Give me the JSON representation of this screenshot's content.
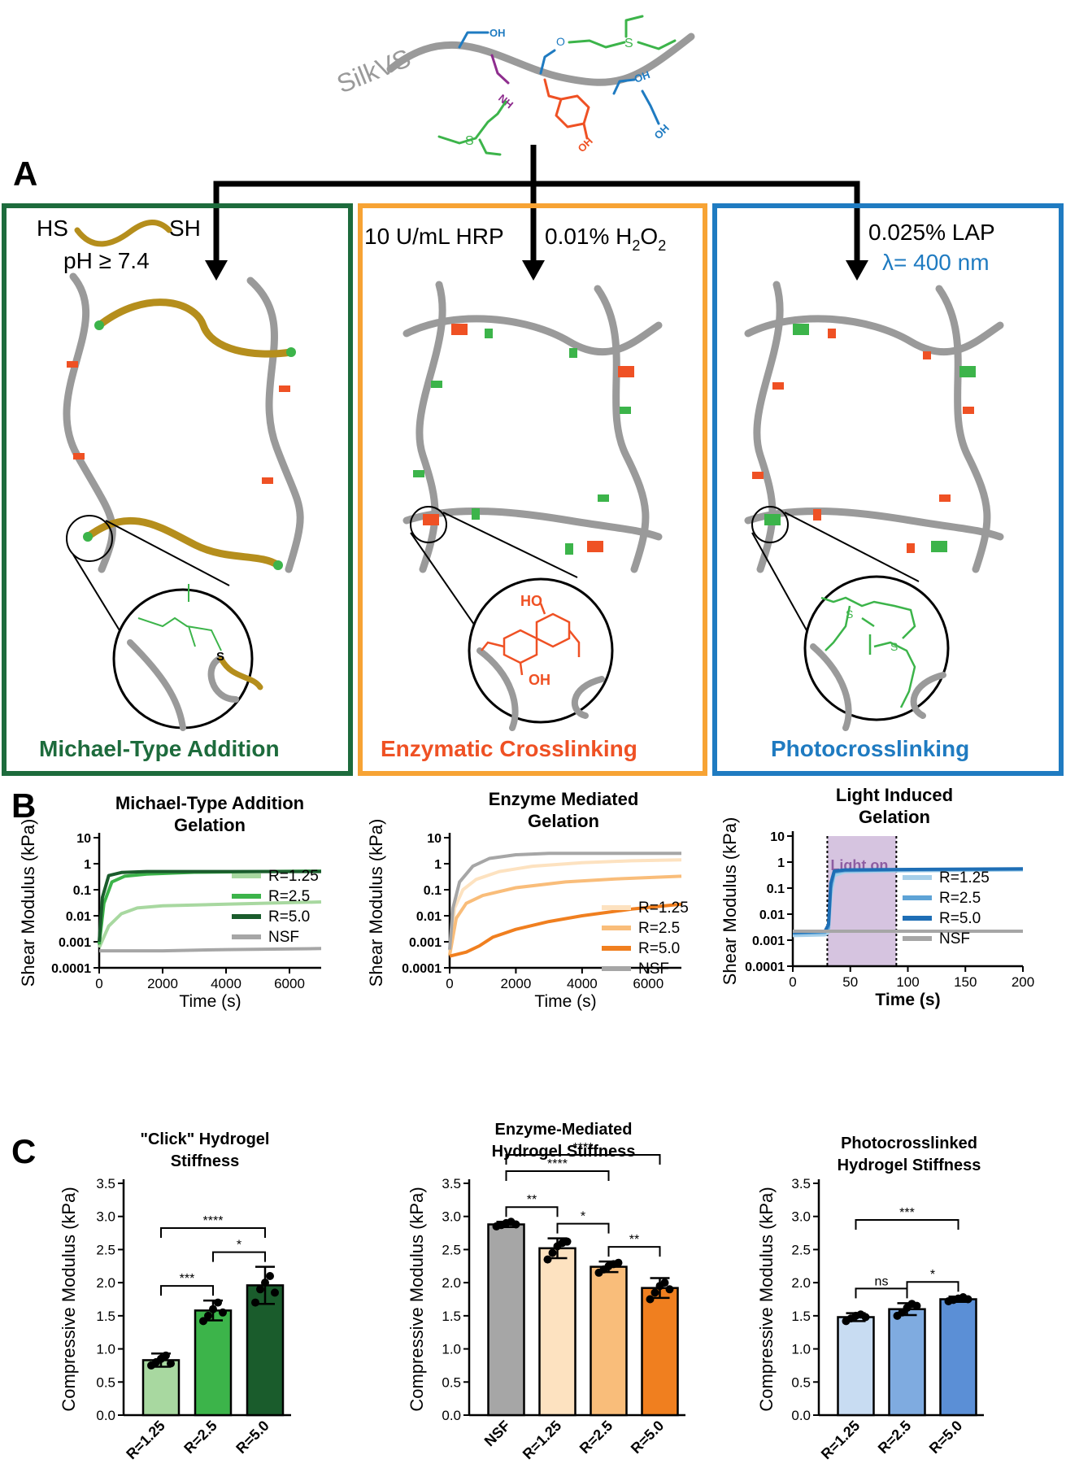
{
  "colors": {
    "green_frame": "#1d6b3c",
    "orange_frame": "#f7a334",
    "blue_frame": "#1f7bc1",
    "silk": "#9a9a9a",
    "vs_green": "#3cb44a",
    "tyr_red": "#ef5124",
    "oh_blue": "#1f7bc1",
    "nh_purple": "#8e2d8e",
    "crosslinker": "#b58e1c",
    "light_on": "#d6c4e0"
  },
  "panel_a": {
    "label": "A",
    "silk_label": "SilkVS",
    "oh": "OH",
    "nh": "NH",
    "o": "O",
    "s": "S",
    "michael": {
      "reagent_left": "HS",
      "reagent_right": "SH",
      "condition": "pH ≥ 7.4",
      "title": "Michael-Type Addition",
      "zoom_s": "S"
    },
    "enzymatic": {
      "reagent_hrp": "10 U/mL HRP",
      "reagent_h2o2": "0.01% H",
      "h2o2_sub1": "2",
      "h2o2_mid": "O",
      "h2o2_sub2": "2",
      "title": "Enzymatic Crosslinking",
      "zoom_ho": "HO",
      "zoom_oh": "OH"
    },
    "photo": {
      "reagent_lap": "0.025% LAP",
      "wavelength": "λ= 400 nm",
      "title": "Photocrosslinking"
    }
  },
  "panel_b": {
    "label": "B",
    "ylabel": "Shear Modulus (kPa)",
    "charts": [
      {
        "title1": "Michael-Type Addition",
        "title2": "Gelation",
        "xlabel": "Time (s)"
      },
      {
        "title1": "Enzyme Mediated",
        "title2": "Gelation",
        "xlabel": "Time (s)"
      },
      {
        "title1": "Light Induced",
        "title2": "Gelation",
        "xlabel": "Time (s)",
        "light_label": "Light on"
      }
    ]
  },
  "panel_c": {
    "label": "C",
    "ylabel": "Compressive Modulus (kPa)",
    "charts": [
      {
        "title1": "\"Click\" Hydrogel",
        "title2": "Stiffness"
      },
      {
        "title1": "Enzyme-Mediated",
        "title2": "Hydrogel Stiffness"
      },
      {
        "title1": "Photocrosslinked",
        "title2": "Hydrogel Stiffness"
      }
    ]
  },
  "chart_data": [
    {
      "id": "B1",
      "type": "line",
      "title": "Michael-Type Addition Gelation",
      "xlabel": "Time (s)",
      "ylabel": "Shear Modulus (kPa)",
      "xlim": [
        0,
        7000
      ],
      "ylim": [
        0.0001,
        10
      ],
      "yscale": "log",
      "xticks": [
        "0",
        "2000",
        "4000",
        "6000"
      ],
      "yticks": [
        "10",
        "1",
        "0.1",
        "0.01",
        "0.001",
        "0.0001"
      ],
      "series": [
        {
          "name": "R=1.25",
          "color": "#a8d8a0",
          "points": [
            [
              0,
              0.0006
            ],
            [
              300,
              0.004
            ],
            [
              700,
              0.012
            ],
            [
              1200,
              0.02
            ],
            [
              2000,
              0.024
            ],
            [
              4000,
              0.028
            ],
            [
              7000,
              0.034
            ]
          ]
        },
        {
          "name": "R=2.5",
          "color": "#3cb44a",
          "points": [
            [
              0,
              0.0008
            ],
            [
              150,
              0.03
            ],
            [
              400,
              0.2
            ],
            [
              800,
              0.33
            ],
            [
              1500,
              0.4
            ],
            [
              3000,
              0.47
            ],
            [
              5000,
              0.5
            ],
            [
              7000,
              0.52
            ]
          ]
        },
        {
          "name": "R=5.0",
          "color": "#1a5c2c",
          "points": [
            [
              0,
              0.001
            ],
            [
              100,
              0.05
            ],
            [
              300,
              0.35
            ],
            [
              700,
              0.46
            ],
            [
              1500,
              0.5
            ],
            [
              3000,
              0.5
            ],
            [
              7000,
              0.5
            ]
          ]
        },
        {
          "name": "NSF",
          "color": "#a6a6a6",
          "points": [
            [
              0,
              0.00045
            ],
            [
              2000,
              0.00045
            ],
            [
              4000,
              0.0005
            ],
            [
              7000,
              0.00055
            ]
          ]
        }
      ]
    },
    {
      "id": "B2",
      "type": "line",
      "title": "Enzyme Mediated Gelation",
      "xlabel": "Time (s)",
      "ylabel": "Shear Modulus (kPa)",
      "xlim": [
        0,
        7000
      ],
      "ylim": [
        0.0001,
        10
      ],
      "yscale": "log",
      "xticks": [
        "0",
        "2000",
        "4000",
        "6000"
      ],
      "yticks": [
        "10",
        "1",
        "0.1",
        "0.01",
        "0.001",
        "0.0001"
      ],
      "series": [
        {
          "name": "R=1.25",
          "color": "#fde2c0",
          "points": [
            [
              0,
              0.0003
            ],
            [
              150,
              0.02
            ],
            [
              400,
              0.1
            ],
            [
              800,
              0.25
            ],
            [
              1500,
              0.5
            ],
            [
              2500,
              0.8
            ],
            [
              4000,
              1.1
            ],
            [
              5500,
              1.3
            ],
            [
              7000,
              1.4
            ]
          ]
        },
        {
          "name": "R=2.5",
          "color": "#f9bd7a",
          "points": [
            [
              0,
              0.0003
            ],
            [
              200,
              0.008
            ],
            [
              500,
              0.03
            ],
            [
              1000,
              0.06
            ],
            [
              2000,
              0.12
            ],
            [
              3500,
              0.2
            ],
            [
              5000,
              0.26
            ],
            [
              7000,
              0.33
            ]
          ]
        },
        {
          "name": "R=5.0",
          "color": "#f07f1f",
          "points": [
            [
              0,
              0.00028
            ],
            [
              500,
              0.0004
            ],
            [
              900,
              0.0007
            ],
            [
              1300,
              0.0015
            ],
            [
              2000,
              0.003
            ],
            [
              3000,
              0.006
            ],
            [
              4000,
              0.01
            ],
            [
              5500,
              0.018
            ],
            [
              7000,
              0.028
            ]
          ]
        },
        {
          "name": "NSF",
          "color": "#a6a6a6",
          "points": [
            [
              0,
              0.0005
            ],
            [
              100,
              0.02
            ],
            [
              300,
              0.2
            ],
            [
              700,
              0.8
            ],
            [
              1200,
              1.6
            ],
            [
              2000,
              2.2
            ],
            [
              3000,
              2.5
            ],
            [
              7000,
              2.5
            ]
          ]
        }
      ]
    },
    {
      "id": "B3",
      "type": "line",
      "title": "Light Induced Gelation",
      "xlabel": "Time (s)",
      "ylabel": "Shear Modulus (kPa)",
      "xlim": [
        0,
        200
      ],
      "ylim": [
        0.0001,
        10
      ],
      "yscale": "log",
      "xticks": [
        "0",
        "50",
        "100",
        "150",
        "200"
      ],
      "yticks": [
        "10",
        "1",
        "0.1",
        "0.01",
        "0.001",
        "0.0001"
      ],
      "light_on_range": [
        30,
        90
      ],
      "series": [
        {
          "name": "R=1.25",
          "color": "#a6cfe9",
          "points": [
            [
              0,
              0.0015
            ],
            [
              28,
              0.0016
            ],
            [
              31,
              0.002
            ],
            [
              33,
              0.05
            ],
            [
              36,
              0.3
            ],
            [
              45,
              0.42
            ],
            [
              90,
              0.46
            ],
            [
              200,
              0.5
            ]
          ]
        },
        {
          "name": "R=2.5",
          "color": "#5ea3d6",
          "points": [
            [
              0,
              0.0018
            ],
            [
              28,
              0.002
            ],
            [
              31,
              0.003
            ],
            [
              33,
              0.1
            ],
            [
              36,
              0.4
            ],
            [
              45,
              0.47
            ],
            [
              90,
              0.5
            ],
            [
              200,
              0.53
            ]
          ]
        },
        {
          "name": "R=5.0",
          "color": "#1e6eb5",
          "points": [
            [
              0,
              0.002
            ],
            [
              28,
              0.0022
            ],
            [
              31,
              0.004
            ],
            [
              33,
              0.15
            ],
            [
              36,
              0.45
            ],
            [
              45,
              0.5
            ],
            [
              90,
              0.52
            ],
            [
              200,
              0.55
            ]
          ]
        },
        {
          "name": "NSF",
          "color": "#a6a6a6",
          "points": [
            [
              0,
              0.0022
            ],
            [
              200,
              0.0022
            ]
          ]
        }
      ]
    },
    {
      "id": "C1",
      "type": "bar",
      "title": "\"Click\" Hydrogel Stiffness",
      "ylabel": "Compressive Modulus (kPa)",
      "ylim": [
        0,
        3.5
      ],
      "yticks": [
        "3.5",
        "3.0",
        "2.5",
        "2.0",
        "1.5",
        "1.0",
        "0.5",
        "0.0"
      ],
      "categories": [
        "R=1.25",
        "R=2.5",
        "R=5.0"
      ],
      "values": [
        0.83,
        1.58,
        1.96
      ],
      "errors": [
        0.1,
        0.15,
        0.28
      ],
      "colors": [
        "#a8d8a0",
        "#3cb44a",
        "#1a5c2c"
      ],
      "points": [
        [
          0.75,
          0.8,
          0.85,
          0.9,
          0.78
        ],
        [
          1.42,
          1.5,
          1.6,
          1.7,
          1.55
        ],
        [
          1.7,
          1.9,
          2.0,
          2.1,
          1.85
        ]
      ],
      "significance": [
        {
          "a": 0,
          "b": 1,
          "label": "***"
        },
        {
          "a": 1,
          "b": 2,
          "label": "*"
        },
        {
          "a": 0,
          "b": 2,
          "label": "****"
        }
      ]
    },
    {
      "id": "C2",
      "type": "bar",
      "title": "Enzyme-Mediated Hydrogel Stiffness",
      "ylabel": "Compressive Modulus (kPa)",
      "ylim": [
        0,
        3.5
      ],
      "yticks": [
        "3.5",
        "3.0",
        "2.5",
        "2.0",
        "1.5",
        "1.0",
        "0.5",
        "0.0"
      ],
      "categories": [
        "NSF",
        "R=1.25",
        "R=2.5",
        "R=5.0"
      ],
      "values": [
        2.88,
        2.52,
        2.24,
        1.92
      ],
      "errors": [
        0.04,
        0.15,
        0.08,
        0.15
      ],
      "colors": [
        "#a6a6a6",
        "#fde2c0",
        "#f9bd7a",
        "#f07f1f"
      ],
      "points": [
        [
          2.85,
          2.87,
          2.9,
          2.92,
          2.88
        ],
        [
          2.35,
          2.45,
          2.55,
          2.6,
          2.62
        ],
        [
          2.15,
          2.2,
          2.25,
          2.28,
          2.3
        ],
        [
          1.75,
          1.85,
          1.95,
          2.0,
          1.9
        ]
      ],
      "significance": [
        {
          "a": 0,
          "b": 1,
          "label": "**"
        },
        {
          "a": 1,
          "b": 2,
          "label": "*"
        },
        {
          "a": 2,
          "b": 3,
          "label": "**"
        },
        {
          "a": 0,
          "b": 2,
          "label": "****"
        },
        {
          "a": 0,
          "b": 3,
          "label": "****"
        }
      ]
    },
    {
      "id": "C3",
      "type": "bar",
      "title": "Photocrosslinked Hydrogel Stiffness",
      "ylabel": "Compressive Modulus (kPa)",
      "ylim": [
        0,
        3.5
      ],
      "yticks": [
        "3.5",
        "3.0",
        "2.5",
        "2.0",
        "1.5",
        "1.0",
        "0.5",
        "0.0"
      ],
      "categories": [
        "R=1.25",
        "R=2.5",
        "R=5.0"
      ],
      "values": [
        1.48,
        1.6,
        1.75
      ],
      "errors": [
        0.06,
        0.09,
        0.04
      ],
      "colors": [
        "#c8dcf2",
        "#7fabe0",
        "#5b8fd6"
      ],
      "points": [
        [
          1.42,
          1.46,
          1.5,
          1.52,
          1.48
        ],
        [
          1.5,
          1.55,
          1.62,
          1.68,
          1.65
        ],
        [
          1.72,
          1.74,
          1.76,
          1.78,
          1.75
        ]
      ],
      "significance": [
        {
          "a": 0,
          "b": 1,
          "label": "ns"
        },
        {
          "a": 1,
          "b": 2,
          "label": "*"
        },
        {
          "a": 0,
          "b": 2,
          "label": "***"
        }
      ]
    }
  ]
}
